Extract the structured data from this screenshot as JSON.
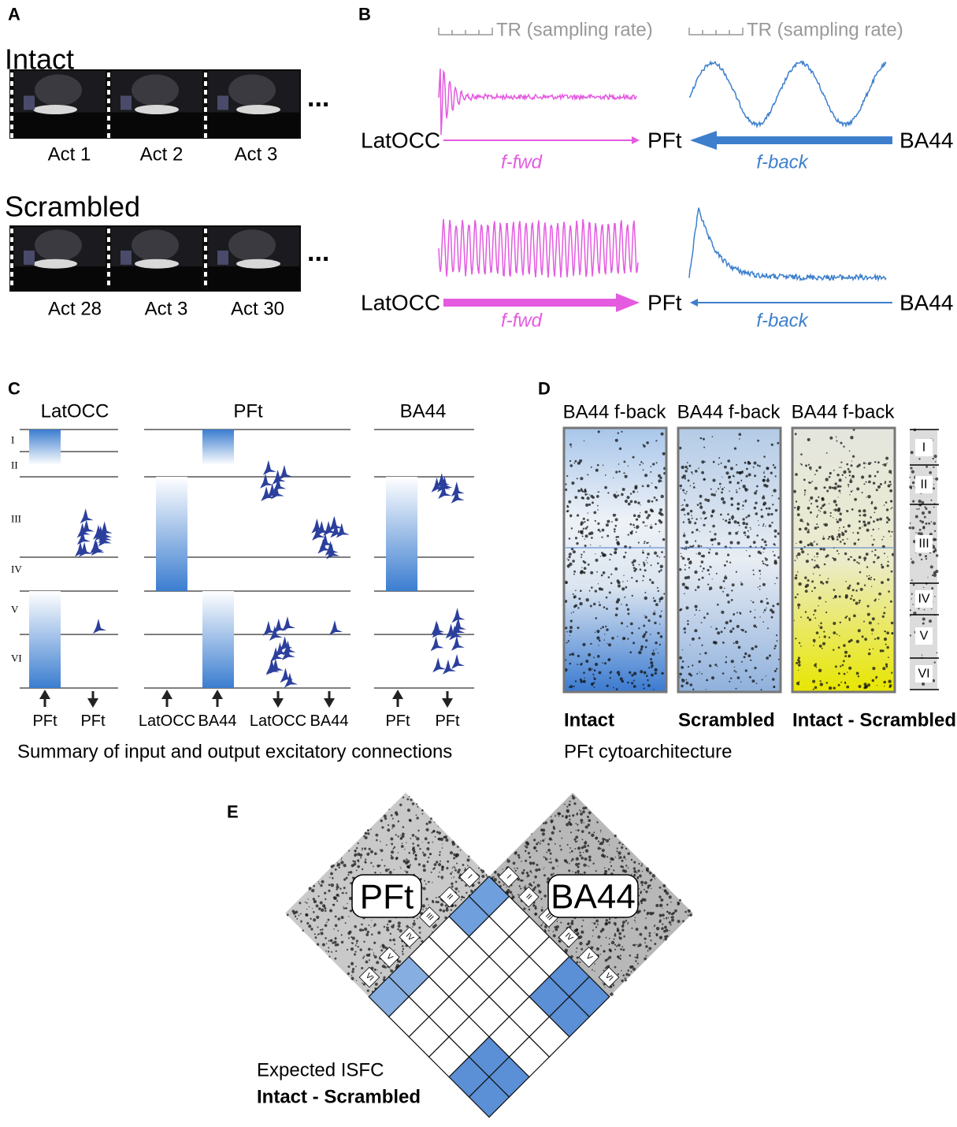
{
  "panel_a": {
    "label": "A",
    "groups": [
      {
        "title": "Intact",
        "acts": [
          "Act 1",
          "Act 2",
          "Act 3"
        ],
        "ellipsis": "..."
      },
      {
        "title": "Scrambled",
        "acts": [
          "Act 28",
          "Act 3",
          "Act 30"
        ],
        "ellipsis": "..."
      }
    ]
  },
  "panel_b": {
    "label": "B",
    "tr_labels": [
      "TR (sampling rate)",
      "TR (sampling rate)"
    ],
    "rows": [
      {
        "source": "LatOCC",
        "target": "PFt",
        "feedback_source": "BA44",
        "fwd": "f-fwd",
        "back": "f-back"
      },
      {
        "source": "LatOCC",
        "target": "PFt",
        "feedback_source": "BA44",
        "fwd": "f-fwd",
        "back": "f-back"
      }
    ]
  },
  "panel_c": {
    "label": "C",
    "regions": [
      "LatOCC",
      "PFt",
      "BA44"
    ],
    "layers": [
      "I",
      "II",
      "III",
      "IV",
      "V",
      "VI"
    ],
    "connections": [
      "PFt",
      "PFt",
      "LatOCC",
      "BA44",
      "LatOCC",
      "BA44",
      "PFt",
      "PFt"
    ],
    "caption": "Summary of input and output excitatory connections"
  },
  "panel_d": {
    "label": "D",
    "panels": [
      {
        "title": "BA44 f-back",
        "caption": "Intact"
      },
      {
        "title": "BA44 f-back",
        "caption": "Scrambled"
      },
      {
        "title": "BA44 f-back",
        "caption": "Intact - Scrambled"
      }
    ],
    "layers": [
      "I",
      "II",
      "III",
      "IV",
      "V",
      "VI"
    ],
    "caption": "PFt cytoarchitecture"
  },
  "panel_e": {
    "label": "E",
    "regions": [
      "PFt",
      "BA44"
    ],
    "pft_layers": [
      "I",
      "II",
      "III",
      "IV",
      "V",
      "VI"
    ],
    "ba44_layers": [
      "I",
      "II",
      "III",
      "IV",
      "V",
      "VI"
    ],
    "caption": "Expected ISFC",
    "subcaption": "Intact - Scrambled"
  }
}
